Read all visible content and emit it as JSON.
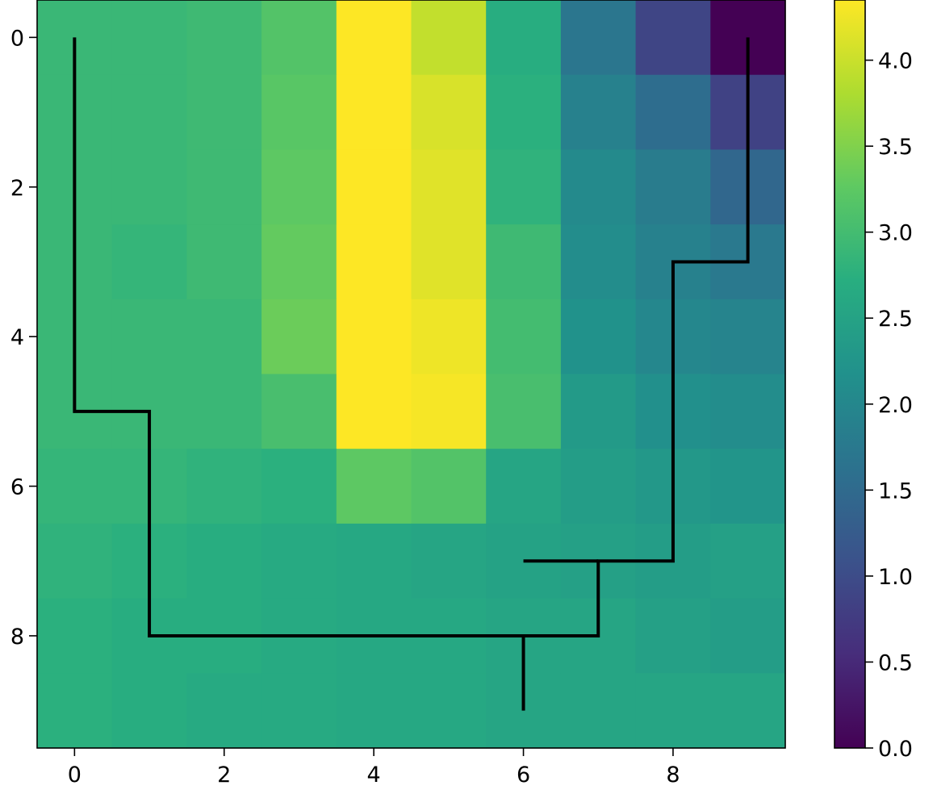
{
  "chart_data": {
    "type": "heatmap",
    "title": "",
    "xlabel": "",
    "ylabel": "",
    "colormap": "viridis",
    "x_ticks": [
      "0",
      "2",
      "4",
      "6",
      "8"
    ],
    "y_ticks": [
      "0",
      "2",
      "4",
      "6",
      "8"
    ],
    "colorbar_ticks": [
      "0.0",
      "0.5",
      "1.0",
      "1.5",
      "2.0",
      "2.5",
      "3.0",
      "3.5",
      "4.0"
    ],
    "colorbar_range": [
      0.0,
      4.35
    ],
    "grid": false,
    "values": [
      [
        2.9,
        2.9,
        2.95,
        3.15,
        4.35,
        3.95,
        2.7,
        1.7,
        0.9,
        0.0
      ],
      [
        2.9,
        2.9,
        2.95,
        3.2,
        4.35,
        4.1,
        2.75,
        1.9,
        1.55,
        0.85
      ],
      [
        2.9,
        2.9,
        2.95,
        3.25,
        4.35,
        4.15,
        2.8,
        2.05,
        1.8,
        1.45
      ],
      [
        2.9,
        2.85,
        2.95,
        3.3,
        4.35,
        4.15,
        2.95,
        2.1,
        1.9,
        1.75
      ],
      [
        2.9,
        2.9,
        2.9,
        3.35,
        4.35,
        4.25,
        3.0,
        2.2,
        2.0,
        1.95
      ],
      [
        2.9,
        2.9,
        2.9,
        3.05,
        4.35,
        4.3,
        3.05,
        2.35,
        2.15,
        2.1
      ],
      [
        2.85,
        2.85,
        2.8,
        2.75,
        3.25,
        3.15,
        2.55,
        2.4,
        2.3,
        2.25
      ],
      [
        2.8,
        2.75,
        2.7,
        2.65,
        2.6,
        2.55,
        2.5,
        2.45,
        2.4,
        2.45
      ],
      [
        2.75,
        2.7,
        2.7,
        2.65,
        2.6,
        2.6,
        2.55,
        2.55,
        2.45,
        2.4
      ],
      [
        2.75,
        2.7,
        2.65,
        2.65,
        2.6,
        2.6,
        2.55,
        2.55,
        2.55,
        2.55
      ]
    ],
    "path": [
      [
        [
          0,
          0
        ],
        [
          0,
          5
        ],
        [
          1,
          5
        ],
        [
          1,
          8
        ],
        [
          7,
          8
        ],
        [
          7,
          7
        ],
        [
          8,
          7
        ],
        [
          8,
          3
        ],
        [
          9,
          3
        ],
        [
          9,
          0
        ]
      ],
      [
        [
          6,
          8
        ],
        [
          6,
          9
        ]
      ],
      [
        [
          6,
          7
        ],
        [
          7,
          7
        ]
      ]
    ],
    "path_color": "#000000"
  }
}
